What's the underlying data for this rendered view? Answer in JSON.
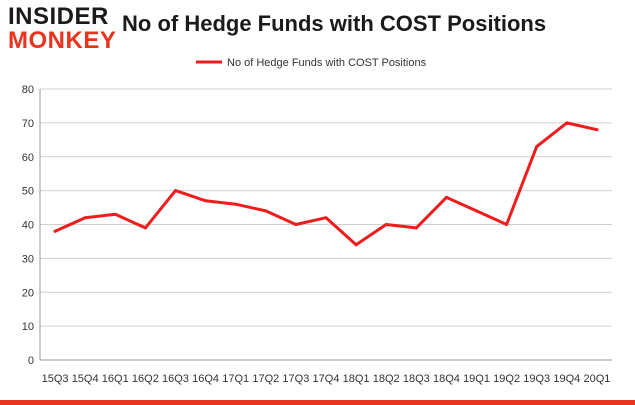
{
  "logo": {
    "line1": "INSIDER",
    "line2": "MONKEY"
  },
  "colors": {
    "line": "#ee1c1c",
    "grid": "#d0d0d0",
    "axis": "#999999",
    "brand": "#e8341c"
  },
  "chart_data": {
    "type": "line",
    "title": "No of Hedge Funds with COST Positions",
    "categories": [
      "15Q3",
      "15Q4",
      "16Q1",
      "16Q2",
      "16Q3",
      "16Q4",
      "17Q1",
      "17Q2",
      "17Q3",
      "17Q4",
      "18Q1",
      "18Q2",
      "18Q3",
      "18Q4",
      "19Q1",
      "19Q2",
      "19Q3",
      "19Q4",
      "20Q1"
    ],
    "series": [
      {
        "name": "No of Hedge Funds with COST Positions",
        "values": [
          38,
          42,
          43,
          39,
          50,
          47,
          46,
          44,
          40,
          42,
          34,
          40,
          39,
          48,
          44,
          40,
          63,
          70,
          68
        ]
      }
    ],
    "ylim": [
      0,
      80
    ],
    "yticks": [
      0,
      10,
      20,
      30,
      40,
      50,
      60,
      70,
      80
    ],
    "grid": true,
    "legend": "top-center"
  }
}
